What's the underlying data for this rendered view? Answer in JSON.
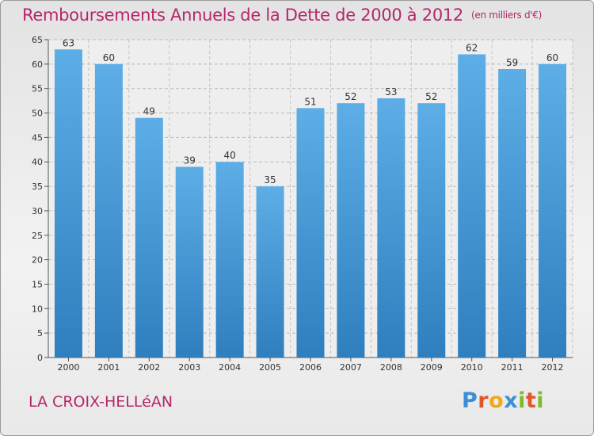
{
  "chart_data": {
    "type": "bar",
    "title": "Remboursements Annuels de la Dette de 2000 à 2012",
    "unit_note": "(en milliers d'€)",
    "categories": [
      "2000",
      "2001",
      "2002",
      "2003",
      "2004",
      "2005",
      "2006",
      "2007",
      "2008",
      "2009",
      "2010",
      "2011",
      "2012"
    ],
    "values": [
      63,
      60,
      49,
      39,
      40,
      35,
      51,
      52,
      53,
      52,
      62,
      59,
      60
    ],
    "data_labels": [
      "63",
      "60",
      "49",
      "39",
      "40",
      "35",
      "51",
      "52",
      "53",
      "52",
      "62",
      "59",
      "60"
    ],
    "ylim": [
      0,
      65
    ],
    "yticks": [
      "0",
      "5",
      "10",
      "15",
      "20",
      "25",
      "30",
      "35",
      "40",
      "45",
      "50",
      "55",
      "60",
      "65"
    ],
    "grid": true,
    "bar_color_top": "#5dade6",
    "bar_color_bottom": "#2f7fbf",
    "title_color": "#b5266b"
  },
  "footer": {
    "commune": "LA CROIX-HELLéAN"
  },
  "logo": {
    "text": "Proxiti",
    "letters": [
      "P",
      "r",
      "o",
      "x",
      "i",
      "t",
      "i"
    ],
    "colors": [
      "#3a8fd6",
      "#e2562c",
      "#f0a81c",
      "#3a8fd6",
      "#7cbb2b",
      "#e2562c",
      "#7cbb2b"
    ]
  }
}
